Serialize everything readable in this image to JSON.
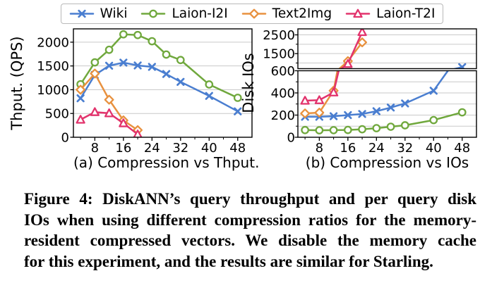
{
  "legend": {
    "items": [
      {
        "label": "Wiki",
        "series": "wiki",
        "marker": "x",
        "color": "#4a7ed0"
      },
      {
        "label": "Laion-I2I",
        "series": "laion-i2i",
        "marker": "o",
        "color": "#70a83d"
      },
      {
        "label": "Text2Img",
        "series": "text2img",
        "marker": "D",
        "color": "#e8913f"
      },
      {
        "label": "Laion-T2I",
        "series": "laion-t2i",
        "marker": "^",
        "color": "#e2336c"
      }
    ]
  },
  "subcaptions": {
    "a": "(a) Compression vs Thput.",
    "b": "(b) Compression vs IOs"
  },
  "caption": {
    "lines": [
      "Figure 4: DiskANN’s query throughput and per query disk",
      "IOs when using different compression ratios for the memory-",
      "resident compressed vectors. We disable the memory cache",
      "for this experiment, and the results are similar for Starling."
    ]
  },
  "colors": {
    "wiki_blue": "#4a7ed0",
    "laion_i2i_green": "#70a83d",
    "text2img_orange": "#e8913f",
    "laion_t2i_pink": "#e2336c",
    "gridline": "#c9c9c9",
    "spine": "#000000"
  },
  "chart_data": [
    {
      "id": "a",
      "type": "line",
      "title": "(a) Compression vs Thput.",
      "xlabel": "",
      "ylabel": "Thput. (QPS)",
      "xlim": [
        2,
        52
      ],
      "x_ticks_major": [
        8,
        16,
        24,
        32,
        40,
        48
      ],
      "x_ticks_minor": [
        4,
        12,
        20,
        28,
        36,
        44
      ],
      "grid": true,
      "legend_position": "figure-top",
      "panels": [
        {
          "ylim": [
            0,
            2280
          ],
          "y_ticks_labeled": [
            0,
            500,
            1000,
            1500,
            2000
          ],
          "y_ticks_minor": [],
          "gridlines": [
            500,
            1000,
            1500,
            2000
          ]
        }
      ],
      "series": [
        {
          "name": "Wiki",
          "marker": "x",
          "color": "#4a7ed0",
          "x": [
            4,
            8,
            12,
            16,
            20,
            24,
            28,
            32,
            40,
            48
          ],
          "y": [
            820,
            1310,
            1505,
            1570,
            1510,
            1480,
            1330,
            1165,
            870,
            545
          ]
        },
        {
          "name": "Laion-I2I",
          "marker": "o",
          "color": "#70a83d",
          "x": [
            4,
            8,
            12,
            16,
            20,
            24,
            28,
            32,
            40,
            48
          ],
          "y": [
            1115,
            1575,
            1840,
            2165,
            2150,
            2020,
            1740,
            1625,
            1110,
            830
          ]
        },
        {
          "name": "Text2Img",
          "marker": "D",
          "color": "#e8913f",
          "x": [
            4,
            8,
            12,
            16,
            20
          ],
          "y": [
            1000,
            1340,
            790,
            355,
            150
          ]
        },
        {
          "name": "Laion-T2I",
          "marker": "^",
          "color": "#e2336c",
          "x": [
            4,
            8,
            12,
            16,
            20
          ],
          "y": [
            370,
            530,
            505,
            295,
            60
          ]
        }
      ]
    },
    {
      "id": "b",
      "type": "line",
      "broken_axis": true,
      "title": "(b) Compression vs IOs",
      "xlabel": "",
      "ylabel": "Disk IOs",
      "xlim": [
        2,
        52
      ],
      "x_ticks_major": [
        8,
        16,
        24,
        32,
        40,
        48
      ],
      "x_ticks_minor": [
        4,
        12,
        20,
        28,
        36,
        44
      ],
      "grid": true,
      "panels": [
        {
          "ylim": [
            700,
            2820
          ],
          "y_ticks_labeled": [
            1500,
            2500
          ],
          "y_ticks_minor": [
            1000,
            2000
          ],
          "gridlines": [
            1000,
            1500,
            2000,
            2500
          ]
        },
        {
          "ylim": [
            0,
            600
          ],
          "y_ticks_labeled": [
            0,
            200,
            400,
            600
          ],
          "y_ticks_minor": [
            100,
            300,
            500
          ],
          "gridlines": [
            100,
            200,
            300,
            400,
            500
          ]
        }
      ],
      "series": [
        {
          "name": "Wiki",
          "marker": "x",
          "color": "#4a7ed0",
          "x": [
            4,
            8,
            12,
            16,
            20,
            24,
            28,
            32,
            40,
            48
          ],
          "y": [
            185,
            185,
            190,
            200,
            210,
            235,
            268,
            305,
            420,
            780
          ]
        },
        {
          "name": "Laion-I2I",
          "marker": "o",
          "color": "#70a83d",
          "x": [
            4,
            8,
            12,
            16,
            20,
            24,
            28,
            32,
            40,
            48
          ],
          "y": [
            65,
            63,
            64,
            66,
            72,
            82,
            95,
            108,
            155,
            225
          ]
        },
        {
          "name": "Text2Img",
          "marker": "D",
          "color": "#e8913f",
          "x": [
            4,
            8,
            12,
            16,
            20
          ],
          "y": [
            215,
            222,
            420,
            1100,
            2100
          ]
        },
        {
          "name": "Laion-T2I",
          "marker": "^",
          "color": "#e2336c",
          "x": [
            4,
            8,
            12,
            16,
            20
          ],
          "y": [
            330,
            335,
            405,
            950,
            2650
          ]
        }
      ]
    }
  ]
}
